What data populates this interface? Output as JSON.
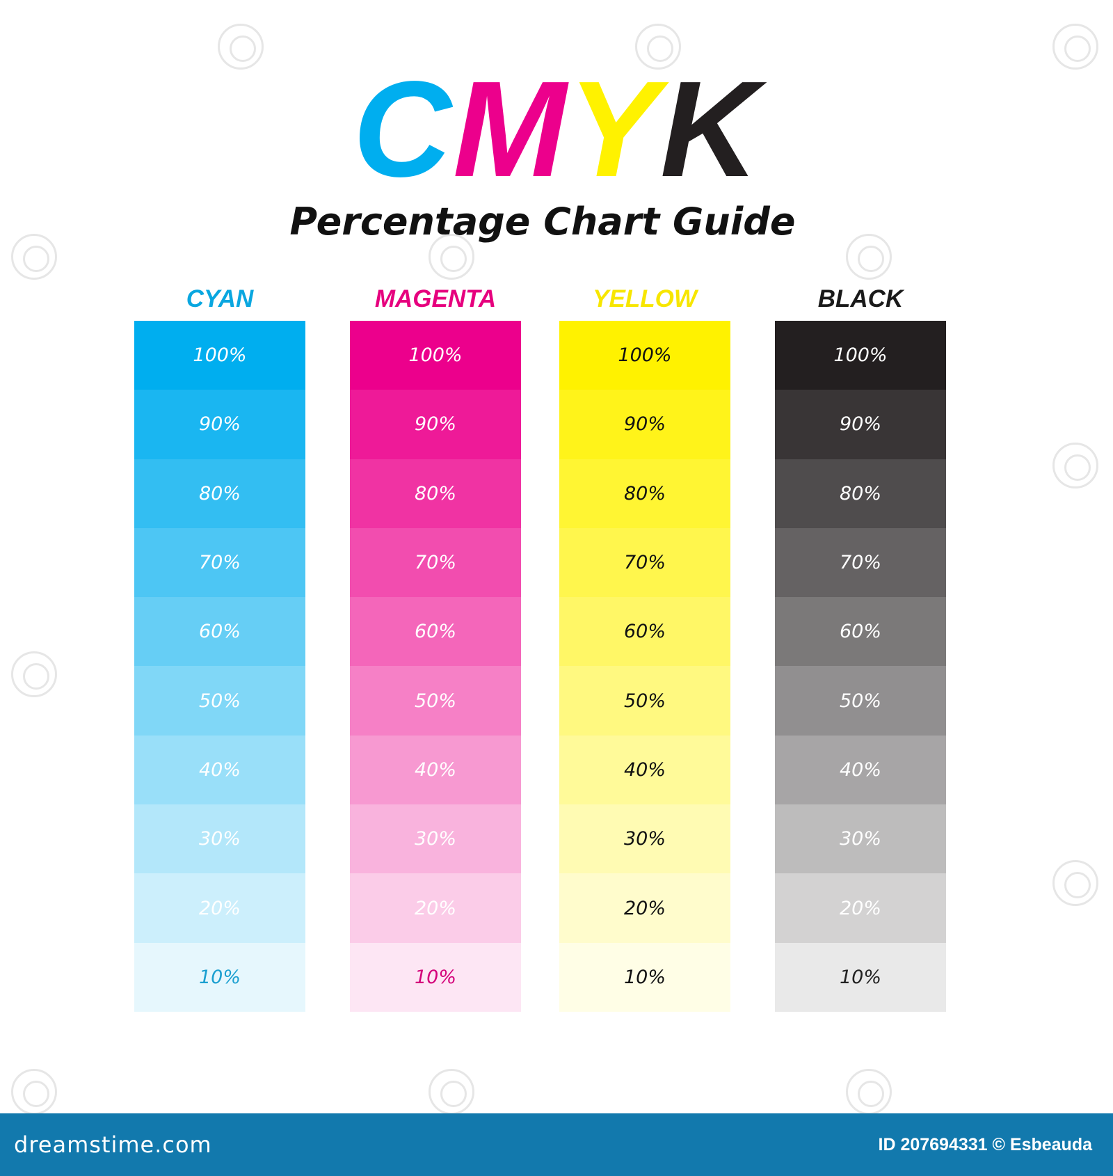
{
  "title": {
    "letters": [
      {
        "char": "C",
        "color": "#00aeef"
      },
      {
        "char": "M",
        "color": "#ec008c"
      },
      {
        "char": "Y",
        "color": "#fff200"
      },
      {
        "char": "K",
        "color": "#231f20"
      }
    ]
  },
  "subtitle": "Percentage Chart Guide",
  "columns": [
    {
      "label": "CYAN",
      "label_color": "#0aa7e0",
      "base_color": "#00aeef",
      "swatches": [
        {
          "percent": "100%",
          "value": 100,
          "text_color": "#ffffff"
        },
        {
          "percent": "90%",
          "value": 90,
          "text_color": "#ffffff"
        },
        {
          "percent": "80%",
          "value": 80,
          "text_color": "#ffffff"
        },
        {
          "percent": "70%",
          "value": 70,
          "text_color": "#ffffff"
        },
        {
          "percent": "60%",
          "value": 60,
          "text_color": "#ffffff"
        },
        {
          "percent": "50%",
          "value": 50,
          "text_color": "#ffffff"
        },
        {
          "percent": "40%",
          "value": 40,
          "text_color": "#ffffff"
        },
        {
          "percent": "30%",
          "value": 30,
          "text_color": "#ffffff"
        },
        {
          "percent": "20%",
          "value": 20,
          "text_color": "#ffffff"
        },
        {
          "percent": "10%",
          "value": 10,
          "text_color": "#1a9fd0"
        }
      ]
    },
    {
      "label": "MAGENTA",
      "label_color": "#e6007e",
      "base_color": "#ec008c",
      "swatches": [
        {
          "percent": "100%",
          "value": 100,
          "text_color": "#ffffff"
        },
        {
          "percent": "90%",
          "value": 90,
          "text_color": "#ffffff"
        },
        {
          "percent": "80%",
          "value": 80,
          "text_color": "#ffffff"
        },
        {
          "percent": "70%",
          "value": 70,
          "text_color": "#ffffff"
        },
        {
          "percent": "60%",
          "value": 60,
          "text_color": "#ffffff"
        },
        {
          "percent": "50%",
          "value": 50,
          "text_color": "#ffffff"
        },
        {
          "percent": "40%",
          "value": 40,
          "text_color": "#ffffff"
        },
        {
          "percent": "30%",
          "value": 30,
          "text_color": "#ffffff"
        },
        {
          "percent": "20%",
          "value": 20,
          "text_color": "#ffffff"
        },
        {
          "percent": "10%",
          "value": 10,
          "text_color": "#d4007a"
        }
      ]
    },
    {
      "label": "YELLOW",
      "label_color": "#f7e600",
      "base_color": "#fff200",
      "swatches": [
        {
          "percent": "100%",
          "value": 100,
          "text_color": "#111111"
        },
        {
          "percent": "90%",
          "value": 90,
          "text_color": "#111111"
        },
        {
          "percent": "80%",
          "value": 80,
          "text_color": "#111111"
        },
        {
          "percent": "70%",
          "value": 70,
          "text_color": "#111111"
        },
        {
          "percent": "60%",
          "value": 60,
          "text_color": "#111111"
        },
        {
          "percent": "50%",
          "value": 50,
          "text_color": "#111111"
        },
        {
          "percent": "40%",
          "value": 40,
          "text_color": "#111111"
        },
        {
          "percent": "30%",
          "value": 30,
          "text_color": "#111111"
        },
        {
          "percent": "20%",
          "value": 20,
          "text_color": "#111111"
        },
        {
          "percent": "10%",
          "value": 10,
          "text_color": "#111111"
        }
      ]
    },
    {
      "label": "BLACK",
      "label_color": "#1a1a1a",
      "base_color": "#231f20",
      "swatches": [
        {
          "percent": "100%",
          "value": 100,
          "text_color": "#ffffff"
        },
        {
          "percent": "90%",
          "value": 90,
          "text_color": "#ffffff"
        },
        {
          "percent": "80%",
          "value": 80,
          "text_color": "#ffffff"
        },
        {
          "percent": "70%",
          "value": 70,
          "text_color": "#ffffff"
        },
        {
          "percent": "60%",
          "value": 60,
          "text_color": "#ffffff"
        },
        {
          "percent": "50%",
          "value": 50,
          "text_color": "#ffffff"
        },
        {
          "percent": "40%",
          "value": 40,
          "text_color": "#ffffff"
        },
        {
          "percent": "30%",
          "value": 30,
          "text_color": "#ffffff"
        },
        {
          "percent": "20%",
          "value": 20,
          "text_color": "#ffffff"
        },
        {
          "percent": "10%",
          "value": 10,
          "text_color": "#222222"
        }
      ]
    }
  ],
  "footer": {
    "site": "dreamstime.com",
    "id_credit": "ID 207694331 © Esbeauda",
    "background": "#1279ad"
  }
}
